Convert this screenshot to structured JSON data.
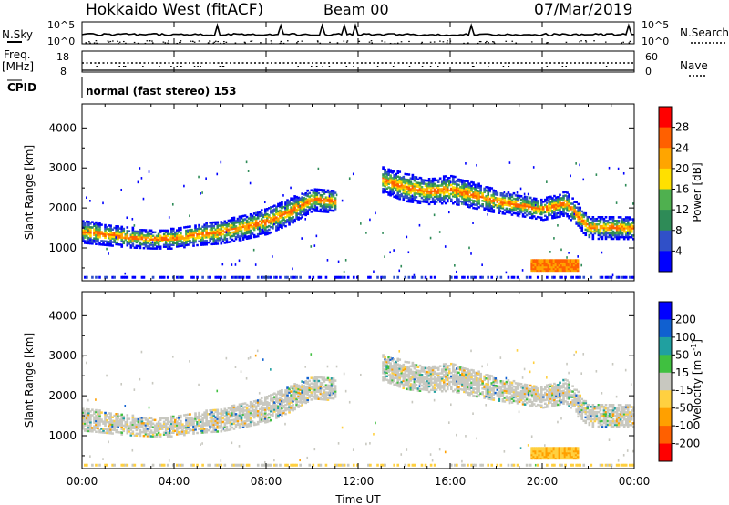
{
  "header": {
    "station": "Hokkaido West (fitACF)",
    "beam": "Beam 00",
    "date": "07/Mar/2019"
  },
  "top_panels": {
    "nsky_label": "N.Sky",
    "nsky_ticks": [
      "10^5",
      "10^0"
    ],
    "nsearch_label": "N.Search",
    "nsearch_ticks": [
      "10^5",
      "10^0"
    ],
    "freq_label": "Freq.",
    "freq_unit": "[MHz]",
    "freq_ticks": [
      "18",
      "8"
    ],
    "nave_label": "Nave",
    "nave_ticks": [
      "60",
      "0"
    ],
    "cpid_label": "CPID",
    "cpid_text": "normal (fast stereo) 153"
  },
  "colors": {
    "power": [
      "#0000ff",
      "#3050c8",
      "#2e8b57",
      "#4fb04f",
      "#ffe000",
      "#ffa500",
      "#ff6000",
      "#ff0000"
    ],
    "velocity": [
      "#0000ff",
      "#1060d0",
      "#20a0a0",
      "#40c040",
      "#c8c8c0",
      "#ffd040",
      "#ffa000",
      "#ff6000",
      "#ff0000"
    ]
  },
  "chart_data": [
    {
      "type": "heatmap",
      "panel": "power",
      "title": "",
      "xlabel": "Time UT",
      "ylabel": "Slant Range [km]",
      "x_ticks": [
        "00:00",
        "04:00",
        "08:00",
        "12:00",
        "16:00",
        "20:00",
        "00:00"
      ],
      "x_range_hours": [
        0,
        24
      ],
      "y_ticks": [
        1000,
        2000,
        3000,
        4000
      ],
      "ylim": [
        180,
        4600
      ],
      "colorbar": {
        "label": "Power [dB]",
        "ticks": [
          4,
          8,
          12,
          16,
          20,
          24,
          28
        ],
        "range": [
          0,
          32
        ]
      },
      "echo_band": {
        "hours": [
          0,
          1,
          2,
          3,
          4,
          5,
          6,
          7,
          8,
          9,
          10,
          11,
          12,
          13,
          14,
          15,
          16,
          17,
          18,
          19,
          20,
          21,
          22,
          23,
          24
        ],
        "center_km": [
          1400,
          1320,
          1250,
          1200,
          1220,
          1320,
          1380,
          1500,
          1650,
          1900,
          2200,
          2150,
          0,
          2700,
          2500,
          2400,
          2450,
          2300,
          2150,
          2050,
          1950,
          2100,
          1500,
          1500,
          1480
        ],
        "halfwidth_km": [
          250,
          230,
          220,
          200,
          220,
          230,
          250,
          260,
          280,
          280,
          250,
          250,
          0,
          280,
          300,
          280,
          300,
          280,
          250,
          230,
          230,
          260,
          250,
          250,
          240
        ]
      },
      "near_range_echo": {
        "hours": [
          19.5,
          21.5
        ],
        "range_km": [
          450,
          700
        ]
      }
    },
    {
      "type": "heatmap",
      "panel": "velocity",
      "title": "",
      "xlabel": "Time UT",
      "ylabel": "Slant Range [km]",
      "x_ticks": [
        "00:00",
        "04:00",
        "08:00",
        "12:00",
        "16:00",
        "20:00",
        "00:00"
      ],
      "y_ticks": [
        1000,
        2000,
        3000,
        4000
      ],
      "ylim": [
        180,
        4600
      ],
      "colorbar": {
        "label": "Velocity [m s",
        "label_exp": "-1",
        "label_end": "]",
        "ticks": [
          200,
          100,
          50,
          15,
          -15,
          -50,
          -100,
          -200
        ]
      }
    }
  ]
}
